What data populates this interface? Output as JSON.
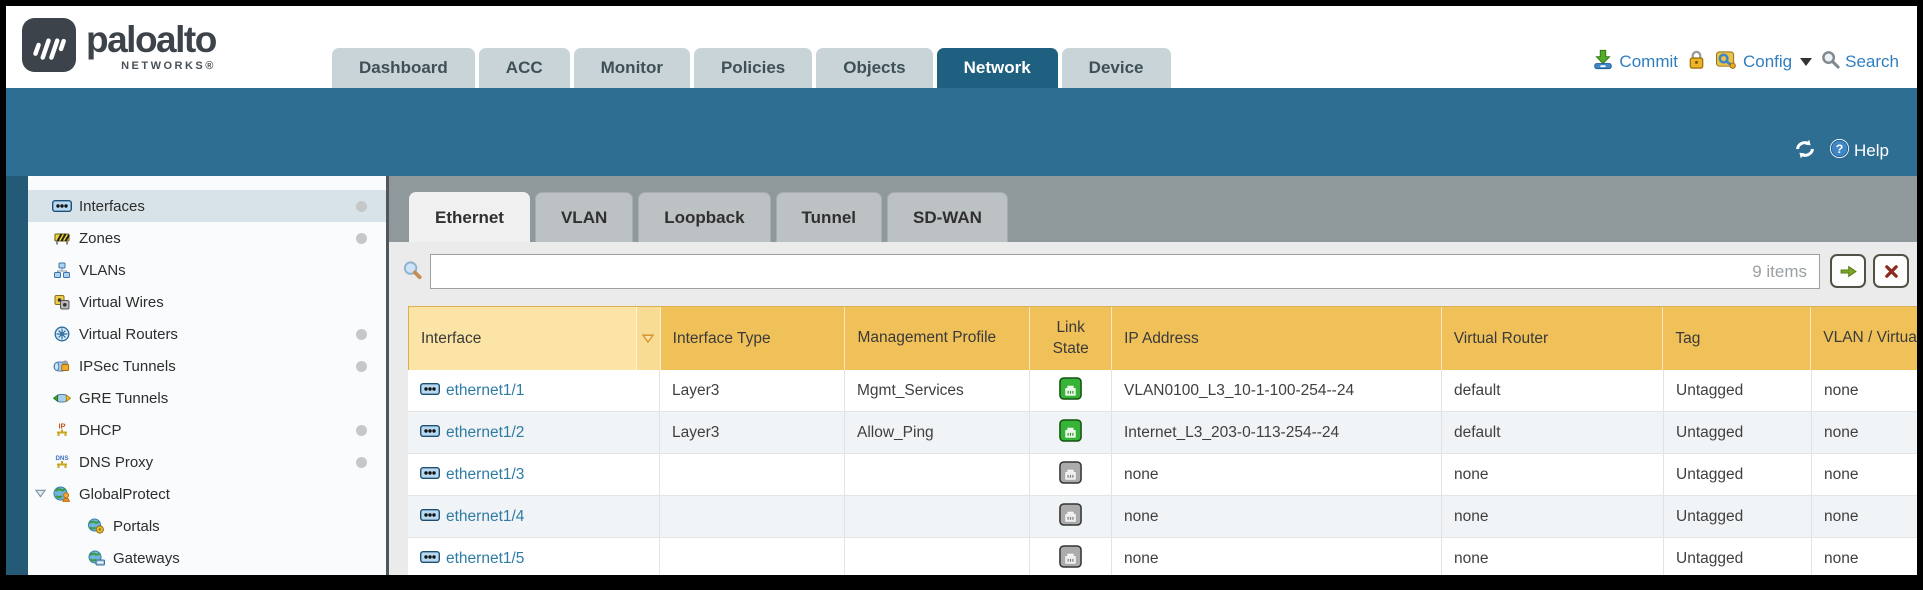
{
  "brand": {
    "name": "paloalto",
    "sub": "NETWORKS®"
  },
  "nav": {
    "tabs": [
      {
        "label": "Dashboard",
        "active": false
      },
      {
        "label": "ACC",
        "active": false
      },
      {
        "label": "Monitor",
        "active": false
      },
      {
        "label": "Policies",
        "active": false
      },
      {
        "label": "Objects",
        "active": false
      },
      {
        "label": "Network",
        "active": true
      },
      {
        "label": "Device",
        "active": false
      }
    ],
    "commit_label": "Commit",
    "config_label": "Config",
    "search_label": "Search"
  },
  "banner": {
    "help_label": "Help"
  },
  "sidebar": {
    "items": [
      {
        "label": "Interfaces",
        "icon": "interfaces-icon",
        "selected": true,
        "dot": true
      },
      {
        "label": "Zones",
        "icon": "zones-icon",
        "dot": true
      },
      {
        "label": "VLANs",
        "icon": "vlans-icon"
      },
      {
        "label": "Virtual Wires",
        "icon": "virtual-wires-icon"
      },
      {
        "label": "Virtual Routers",
        "icon": "virtual-routers-icon",
        "dot": true
      },
      {
        "label": "IPSec Tunnels",
        "icon": "ipsec-tunnels-icon",
        "dot": true
      },
      {
        "label": "GRE Tunnels",
        "icon": "gre-tunnels-icon"
      },
      {
        "label": "DHCP",
        "icon": "dhcp-icon",
        "dot": true
      },
      {
        "label": "DNS Proxy",
        "icon": "dns-proxy-icon",
        "dot": true
      },
      {
        "label": "GlobalProtect",
        "icon": "globalprotect-icon",
        "expander": true
      },
      {
        "label": "Portals",
        "icon": "portals-icon",
        "indent": true
      },
      {
        "label": "Gateways",
        "icon": "gateways-icon",
        "indent": true
      },
      {
        "label": "",
        "icon": "globe-icon",
        "indent": true
      }
    ]
  },
  "subtabs": [
    {
      "label": "Ethernet",
      "active": true
    },
    {
      "label": "VLAN",
      "active": false
    },
    {
      "label": "Loopback",
      "active": false
    },
    {
      "label": "Tunnel",
      "active": false
    },
    {
      "label": "SD-WAN",
      "active": false
    }
  ],
  "toolbar": {
    "search_value": "",
    "items_count": "9 items"
  },
  "table": {
    "columns": {
      "interface": "Interface",
      "type": "Interface Type",
      "mgmt": "Management Profile",
      "link": "Link State",
      "ip": "IP Address",
      "vr": "Virtual Router",
      "tag": "Tag",
      "vlan": "VLAN / Virtual Wire"
    },
    "rows": [
      {
        "interface": "ethernet1/1",
        "type": "Layer3",
        "mgmt": "Mgmt_Services",
        "link": "up",
        "ip": "VLAN0100_L3_10-1-100-254--24",
        "vr": "default",
        "tag": "Untagged",
        "vlan": "none"
      },
      {
        "interface": "ethernet1/2",
        "type": "Layer3",
        "mgmt": "Allow_Ping",
        "link": "up",
        "ip": "Internet_L3_203-0-113-254--24",
        "vr": "default",
        "tag": "Untagged",
        "vlan": "none"
      },
      {
        "interface": "ethernet1/3",
        "type": "",
        "mgmt": "",
        "link": "down",
        "ip": "none",
        "vr": "none",
        "tag": "Untagged",
        "vlan": "none"
      },
      {
        "interface": "ethernet1/4",
        "type": "",
        "mgmt": "",
        "link": "down",
        "ip": "none",
        "vr": "none",
        "tag": "Untagged",
        "vlan": "none"
      },
      {
        "interface": "ethernet1/5",
        "type": "",
        "mgmt": "",
        "link": "down",
        "ip": "none",
        "vr": "none",
        "tag": "Untagged",
        "vlan": "none"
      }
    ]
  },
  "colors": {
    "banner_teal": "#2e6e92",
    "active_tab": "#1f6080",
    "header_orange": "#f1c159",
    "header_sorted": "#fbe4a6",
    "link_up_green": "#37b437",
    "link_down_gray": "#ababab",
    "interface_link_blue": "#2e7ba3"
  }
}
